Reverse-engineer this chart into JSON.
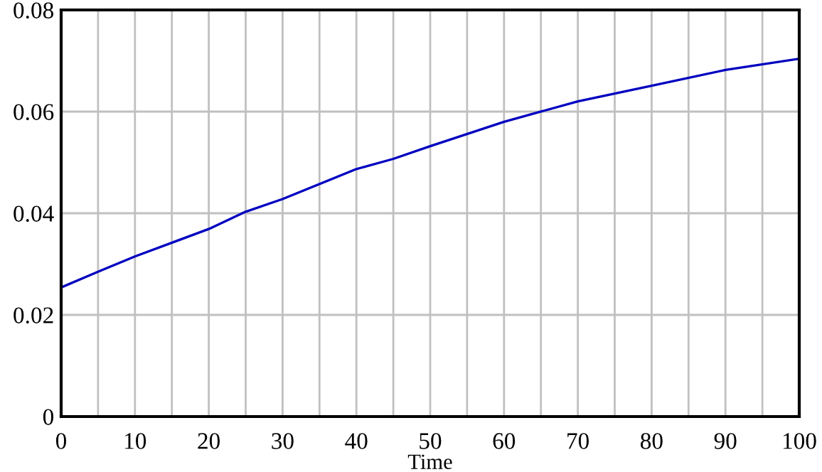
{
  "chart_data": {
    "type": "line",
    "xlabel": "Time",
    "x": [
      0,
      5,
      10,
      20,
      25,
      30,
      40,
      45,
      50,
      60,
      70,
      80,
      90,
      100
    ],
    "series": [
      {
        "color": "#0000c0",
        "values": [
          0.0254,
          0.0285,
          0.0315,
          0.0369,
          0.0403,
          0.0428,
          0.0487,
          0.0507,
          0.0532,
          0.058,
          0.062,
          0.0651,
          0.0682,
          0.0704
        ]
      }
    ],
    "xlim": [
      0,
      100
    ],
    "xticks": [
      0,
      {
        "value": 5,
        "label": null
      },
      10,
      {
        "value": 15,
        "label": null
      },
      20,
      {
        "value": 25,
        "label": null
      },
      30,
      {
        "value": 35,
        "label": null
      },
      40,
      {
        "value": 45,
        "label": null
      },
      50,
      {
        "value": 55,
        "label": null
      },
      60,
      {
        "value": 65,
        "label": null
      },
      70,
      {
        "value": 75,
        "label": null
      },
      80,
      {
        "value": 85,
        "label": null
      },
      90,
      {
        "value": 95,
        "label": null
      },
      100
    ],
    "ylim": [
      0,
      0.08
    ],
    "yticks": [
      0,
      0.02,
      0.04,
      0.06,
      0.08
    ],
    "grid": true,
    "legend": false,
    "marker": "none",
    "line_style": "solid"
  }
}
